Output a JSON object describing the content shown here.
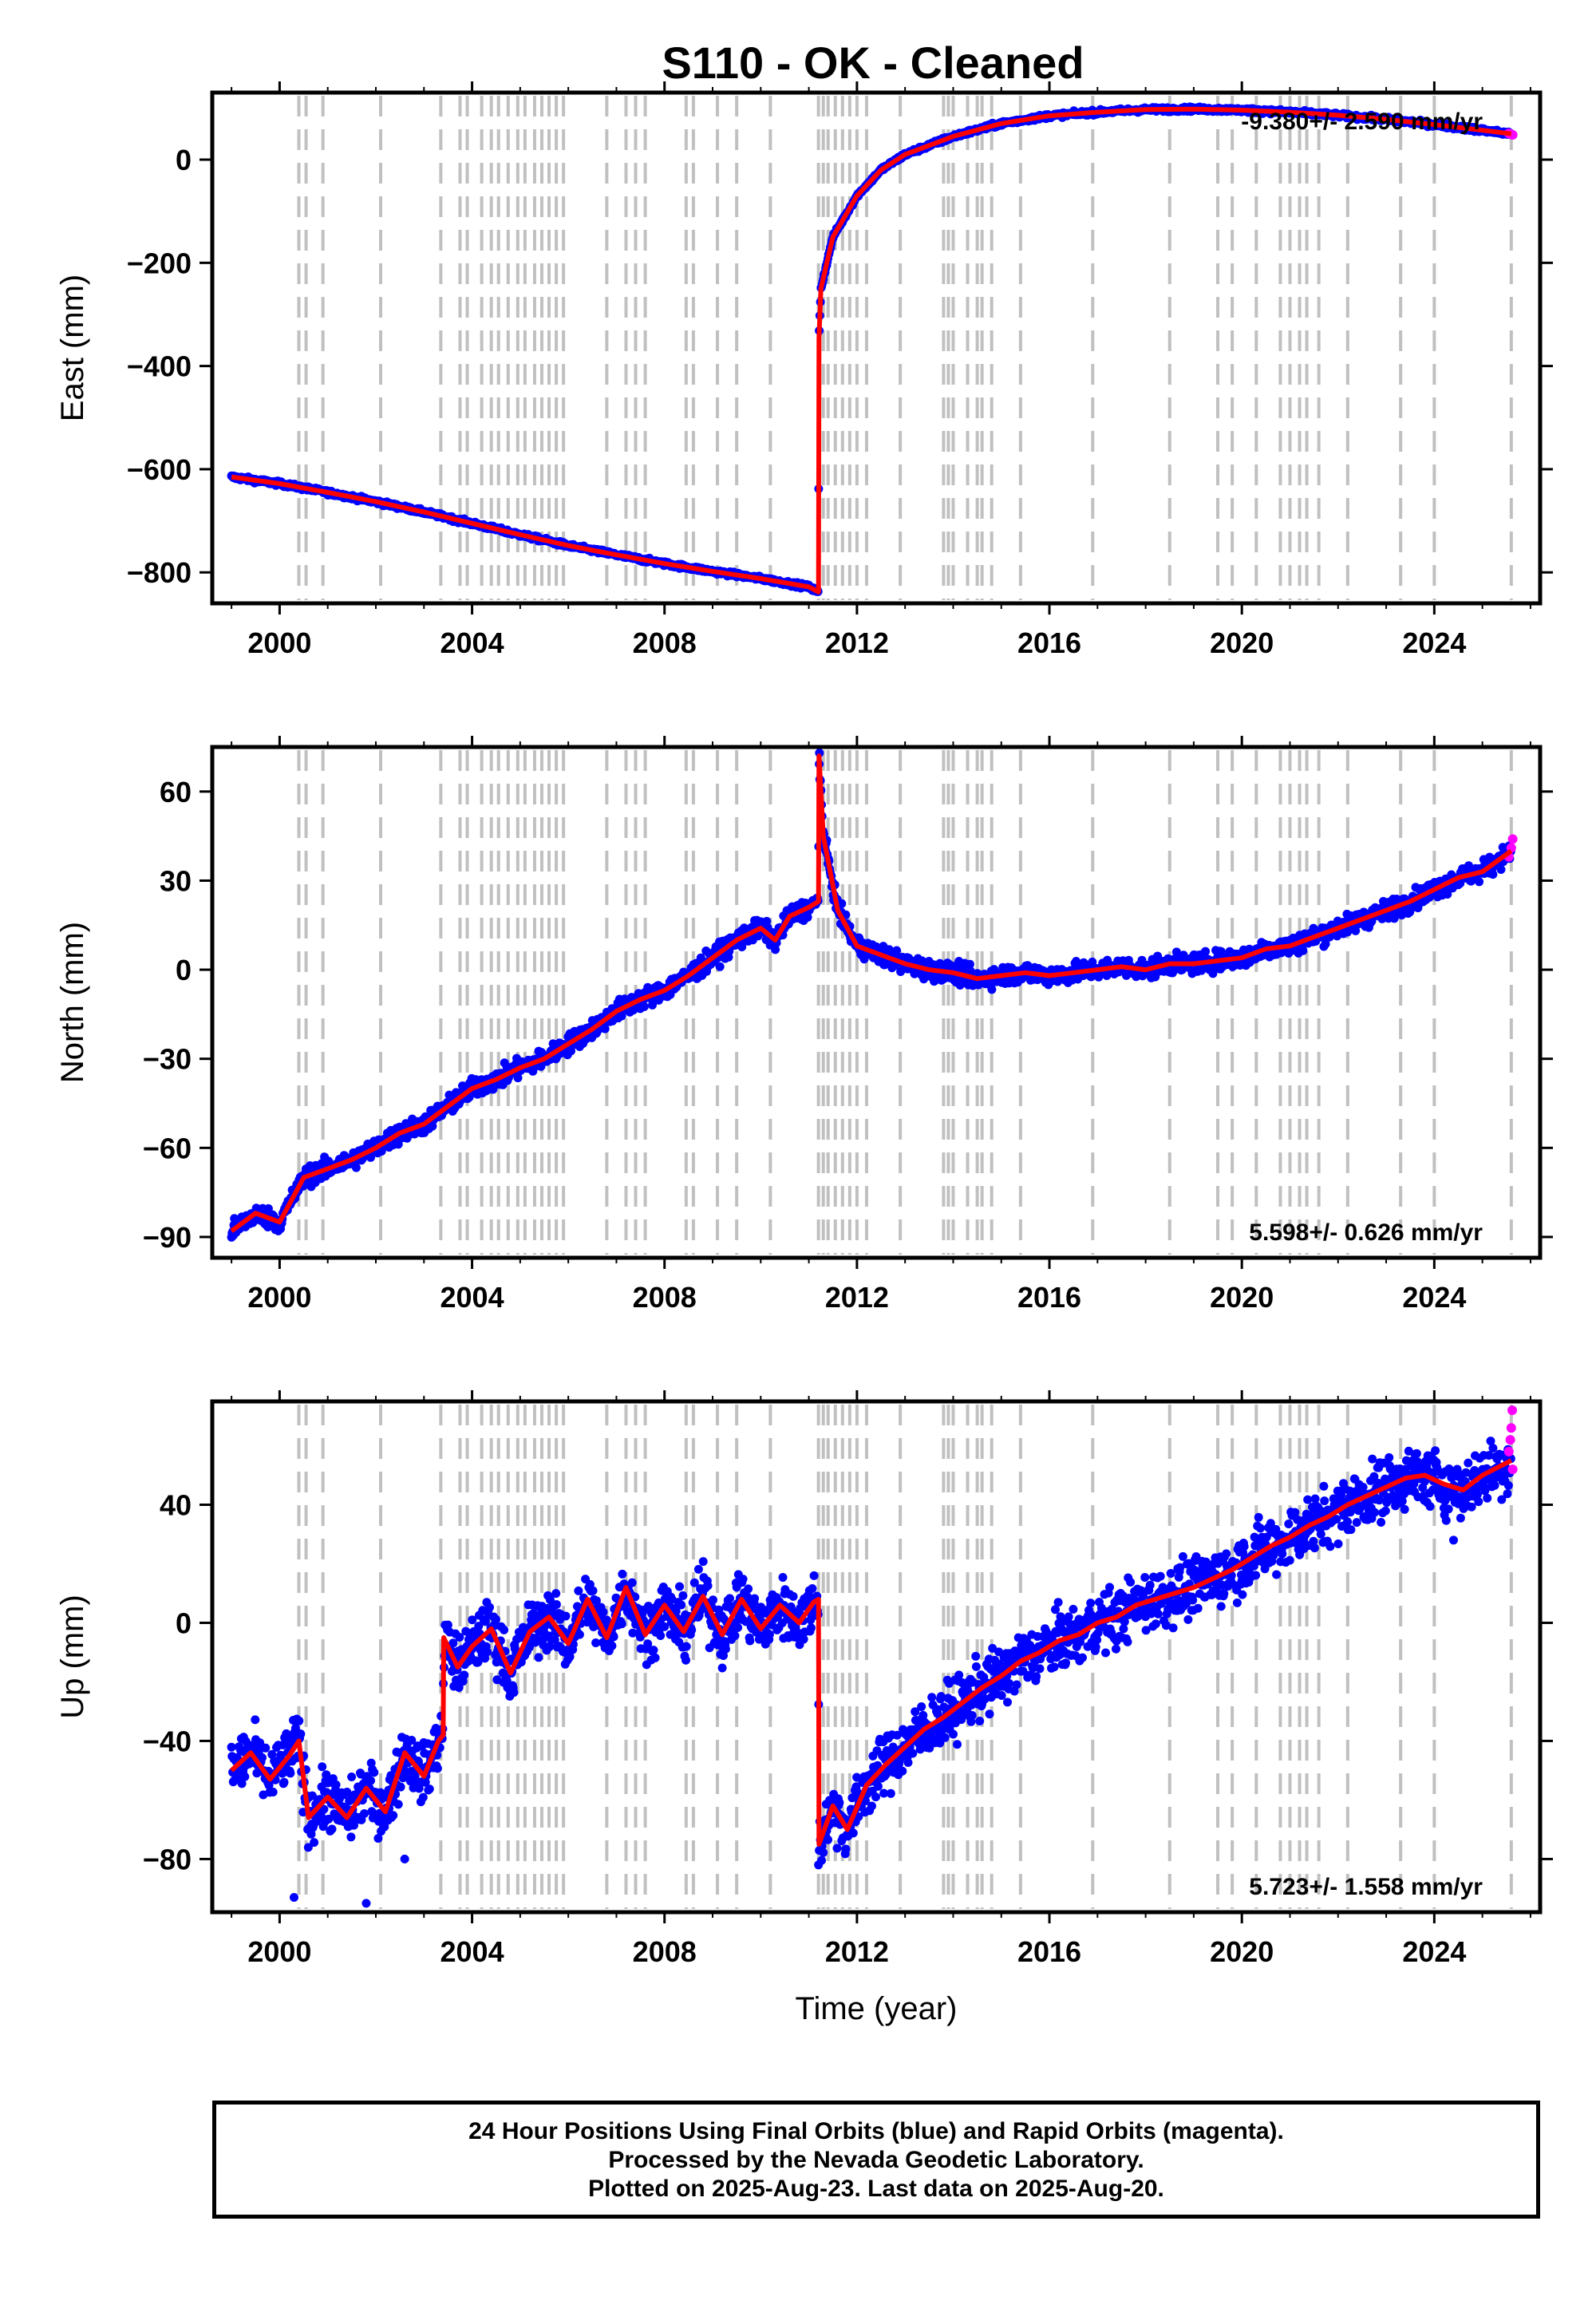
{
  "title": "S110  - OK - Cleaned",
  "colors": {
    "final": "#0000ff",
    "rapid": "#ff00ff",
    "model": "#ff0000",
    "breaks": "#c0c0c0"
  },
  "footer": {
    "line1": "24 Hour Positions Using Final Orbits (blue) and Rapid Orbits (magenta).",
    "line2": "Processed by the Nevada Geodetic Laboratory.",
    "line3": "Plotted on 2025-Aug-23. Last data on 2025-Aug-20."
  },
  "chart_data": [
    {
      "type": "scatter",
      "component": "east",
      "ylabel": "East (mm)",
      "xlabel": "",
      "rate_text": "-9.380+/- 2.590 mm/yr",
      "rate_position": "top-right",
      "xlim": [
        1998.6,
        2026.2
      ],
      "ylim": [
        -860,
        130
      ],
      "xticks": [
        2000,
        2004,
        2008,
        2012,
        2016,
        2020,
        2024
      ],
      "yticks": [
        -800,
        -600,
        -400,
        -200,
        0
      ],
      "model": [
        [
          1999.0,
          -615
        ],
        [
          2000.0,
          -628
        ],
        [
          2001.0,
          -645
        ],
        [
          2002.0,
          -663
        ],
        [
          2003.0,
          -683
        ],
        [
          2004.0,
          -705
        ],
        [
          2005.0,
          -727
        ],
        [
          2006.0,
          -748
        ],
        [
          2007.0,
          -766
        ],
        [
          2008.0,
          -783
        ],
        [
          2009.0,
          -798
        ],
        [
          2010.0,
          -812
        ],
        [
          2011.0,
          -828
        ],
        [
          2011.2,
          -838
        ],
        [
          2011.21,
          -345
        ],
        [
          2011.25,
          -250
        ],
        [
          2011.5,
          -150
        ],
        [
          2012.0,
          -70
        ],
        [
          2012.5,
          -20
        ],
        [
          2013.0,
          10
        ],
        [
          2014.0,
          45
        ],
        [
          2015.0,
          70
        ],
        [
          2016.0,
          85
        ],
        [
          2017.0,
          92
        ],
        [
          2018.0,
          97
        ],
        [
          2019.0,
          98
        ],
        [
          2020.0,
          96
        ],
        [
          2021.0,
          92
        ],
        [
          2022.0,
          86
        ],
        [
          2023.0,
          78
        ],
        [
          2024.0,
          68
        ],
        [
          2025.0,
          57
        ],
        [
          2025.6,
          50
        ]
      ],
      "rapid": [
        [
          2025.55,
          51
        ],
        [
          2025.6,
          49
        ],
        [
          2025.63,
          48
        ]
      ]
    },
    {
      "type": "scatter",
      "component": "north",
      "ylabel": "North (mm)",
      "xlabel": "",
      "rate_text": "5.598+/- 0.626 mm/yr",
      "rate_position": "bottom-right",
      "xlim": [
        1998.6,
        2026.2
      ],
      "ylim": [
        -97,
        75
      ],
      "xticks": [
        2000,
        2004,
        2008,
        2012,
        2016,
        2020,
        2024
      ],
      "yticks": [
        -90,
        -60,
        -30,
        0,
        30,
        60
      ],
      "model": [
        [
          1999.0,
          -88
        ],
        [
          1999.5,
          -82
        ],
        [
          2000.0,
          -85
        ],
        [
          2000.5,
          -70
        ],
        [
          2001.0,
          -67
        ],
        [
          2001.5,
          -64
        ],
        [
          2002.0,
          -60
        ],
        [
          2002.5,
          -55
        ],
        [
          2003.0,
          -52
        ],
        [
          2003.5,
          -46
        ],
        [
          2004.0,
          -40
        ],
        [
          2004.5,
          -37
        ],
        [
          2005.0,
          -33
        ],
        [
          2005.5,
          -30
        ],
        [
          2006.0,
          -25
        ],
        [
          2006.5,
          -20
        ],
        [
          2007.0,
          -14
        ],
        [
          2007.5,
          -10
        ],
        [
          2008.0,
          -7
        ],
        [
          2008.5,
          -2
        ],
        [
          2009.0,
          4
        ],
        [
          2009.5,
          10
        ],
        [
          2010.0,
          14
        ],
        [
          2010.3,
          10
        ],
        [
          2010.6,
          18
        ],
        [
          2011.0,
          21
        ],
        [
          2011.2,
          23
        ],
        [
          2011.21,
          72
        ],
        [
          2011.3,
          45
        ],
        [
          2011.6,
          20
        ],
        [
          2012.0,
          8
        ],
        [
          2012.5,
          5
        ],
        [
          2013.0,
          2
        ],
        [
          2013.5,
          0
        ],
        [
          2014.0,
          -1
        ],
        [
          2014.5,
          -3
        ],
        [
          2015.0,
          -2
        ],
        [
          2015.5,
          -1
        ],
        [
          2016.0,
          -2
        ],
        [
          2016.5,
          -1
        ],
        [
          2017.0,
          0
        ],
        [
          2017.5,
          1
        ],
        [
          2018.0,
          0
        ],
        [
          2018.5,
          2
        ],
        [
          2019.0,
          2
        ],
        [
          2019.5,
          3
        ],
        [
          2020.0,
          4
        ],
        [
          2020.5,
          7
        ],
        [
          2021.0,
          8
        ],
        [
          2021.5,
          11
        ],
        [
          2022.0,
          14
        ],
        [
          2022.5,
          17
        ],
        [
          2023.0,
          20
        ],
        [
          2023.5,
          23
        ],
        [
          2024.0,
          27
        ],
        [
          2024.5,
          31
        ],
        [
          2025.0,
          33
        ],
        [
          2025.6,
          40
        ]
      ],
      "rapid": [
        [
          2025.55,
          38
        ],
        [
          2025.6,
          41
        ],
        [
          2025.63,
          44
        ]
      ]
    },
    {
      "type": "scatter",
      "component": "up",
      "ylabel": "Up (mm)",
      "xlabel": "Time (year)",
      "rate_text": "5.723+/- 1.558 mm/yr",
      "rate_position": "bottom-right",
      "xlim": [
        1998.6,
        2026.2
      ],
      "ylim": [
        -98,
        75
      ],
      "xticks": [
        2000,
        2004,
        2008,
        2012,
        2016,
        2020,
        2024
      ],
      "yticks": [
        -80,
        -40,
        0,
        40
      ],
      "model": [
        [
          1999.0,
          -50
        ],
        [
          1999.4,
          -44
        ],
        [
          1999.8,
          -53
        ],
        [
          2000.2,
          -45
        ],
        [
          2000.4,
          -40
        ],
        [
          2000.6,
          -66
        ],
        [
          2001.0,
          -59
        ],
        [
          2001.4,
          -66
        ],
        [
          2001.8,
          -56
        ],
        [
          2002.2,
          -64
        ],
        [
          2002.6,
          -44
        ],
        [
          2003.0,
          -52
        ],
        [
          2003.3,
          -40
        ],
        [
          2003.4,
          -38
        ],
        [
          2003.41,
          -5
        ],
        [
          2003.7,
          -15
        ],
        [
          2004.0,
          -8
        ],
        [
          2004.4,
          -2
        ],
        [
          2004.8,
          -17
        ],
        [
          2005.2,
          -3
        ],
        [
          2005.6,
          2
        ],
        [
          2006.0,
          -7
        ],
        [
          2006.4,
          8
        ],
        [
          2006.8,
          -5
        ],
        [
          2007.2,
          12
        ],
        [
          2007.6,
          -4
        ],
        [
          2008.0,
          6
        ],
        [
          2008.4,
          -3
        ],
        [
          2008.8,
          9
        ],
        [
          2009.2,
          -4
        ],
        [
          2009.6,
          8
        ],
        [
          2010.0,
          -2
        ],
        [
          2010.4,
          6
        ],
        [
          2010.8,
          0
        ],
        [
          2011.1,
          7
        ],
        [
          2011.2,
          8
        ],
        [
          2011.21,
          -75
        ],
        [
          2011.5,
          -62
        ],
        [
          2011.8,
          -70
        ],
        [
          2012.2,
          -55
        ],
        [
          2012.6,
          -48
        ],
        [
          2013.0,
          -42
        ],
        [
          2013.4,
          -36
        ],
        [
          2013.8,
          -32
        ],
        [
          2014.2,
          -27
        ],
        [
          2014.6,
          -22
        ],
        [
          2015.0,
          -18
        ],
        [
          2015.4,
          -13
        ],
        [
          2015.8,
          -10
        ],
        [
          2016.2,
          -6
        ],
        [
          2016.6,
          -4
        ],
        [
          2017.0,
          0
        ],
        [
          2017.4,
          2
        ],
        [
          2017.8,
          6
        ],
        [
          2018.2,
          8
        ],
        [
          2018.6,
          10
        ],
        [
          2019.0,
          12
        ],
        [
          2019.4,
          15
        ],
        [
          2019.8,
          18
        ],
        [
          2020.2,
          22
        ],
        [
          2020.6,
          26
        ],
        [
          2021.0,
          29
        ],
        [
          2021.4,
          33
        ],
        [
          2021.8,
          36
        ],
        [
          2022.2,
          40
        ],
        [
          2022.6,
          43
        ],
        [
          2023.0,
          46
        ],
        [
          2023.4,
          49
        ],
        [
          2023.8,
          50
        ],
        [
          2024.2,
          47
        ],
        [
          2024.6,
          45
        ],
        [
          2025.0,
          50
        ],
        [
          2025.6,
          55
        ]
      ],
      "rapid": [
        [
          2025.55,
          58
        ],
        [
          2025.58,
          62
        ],
        [
          2025.6,
          66
        ],
        [
          2025.62,
          72
        ],
        [
          2025.63,
          52
        ]
      ]
    }
  ],
  "breaks": [
    2000.4,
    2000.55,
    2000.9,
    2002.1,
    2003.35,
    2003.75,
    2003.9,
    2004.2,
    2004.4,
    2004.55,
    2004.75,
    2004.95,
    2005.1,
    2005.3,
    2005.45,
    2005.6,
    2005.75,
    2005.9,
    2006.8,
    2007.2,
    2007.4,
    2007.6,
    2008.45,
    2008.6,
    2009.1,
    2009.5,
    2010.2,
    2011.2,
    2011.3,
    2011.4,
    2011.55,
    2011.7,
    2011.85,
    2012.0,
    2012.2,
    2012.9,
    2013.8,
    2013.9,
    2014.0,
    2014.3,
    2014.5,
    2014.6,
    2014.8,
    2015.4,
    2016.9,
    2018.5,
    2019.5,
    2019.8,
    2020.3,
    2020.8,
    2021.0,
    2021.2,
    2021.35,
    2021.6,
    2022.2,
    2023.3,
    2024.0,
    2025.6
  ]
}
